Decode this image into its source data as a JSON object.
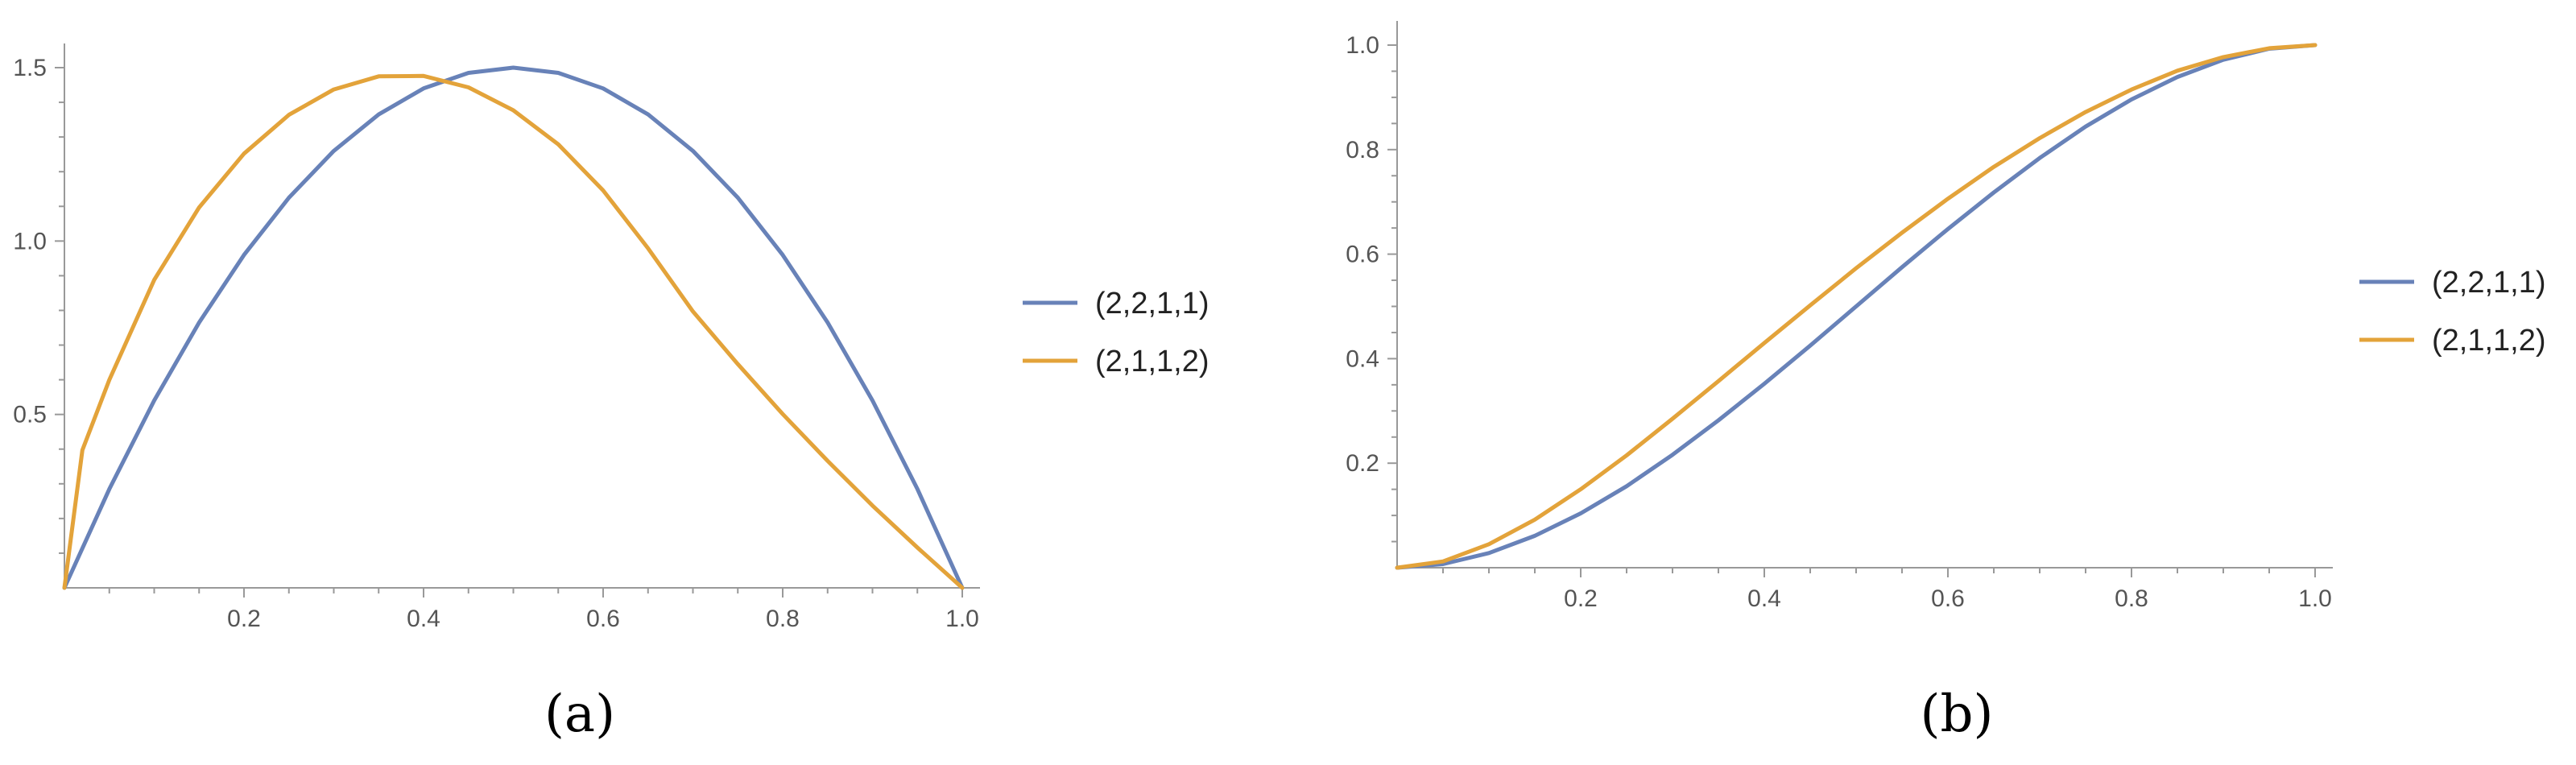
{
  "chart_data": [
    {
      "type": "line",
      "id": "a",
      "panel_label": "(a)",
      "title": "",
      "xlabel": "",
      "ylabel": "",
      "xlim": [
        0,
        1
      ],
      "ylim": [
        0,
        1.5
      ],
      "xticks": [
        {
          "value": 0.2,
          "label": "0.2"
        },
        {
          "value": 0.4,
          "label": "0.4"
        },
        {
          "value": 0.6,
          "label": "0.6"
        },
        {
          "value": 0.8,
          "label": "0.8"
        },
        {
          "value": 1.0,
          "label": "1.0"
        }
      ],
      "yticks": [
        {
          "value": 0.5,
          "label": "0.5"
        },
        {
          "value": 1.0,
          "label": "1.0"
        },
        {
          "value": 1.5,
          "label": "1.5"
        }
      ],
      "grid": false,
      "legend_position": "right",
      "series": [
        {
          "name": "(2,2,1,1)",
          "color": "#6882B8",
          "x": [
            0,
            0.05,
            0.1,
            0.15,
            0.2,
            0.25,
            0.3,
            0.35,
            0.4,
            0.45,
            0.5,
            0.55,
            0.6,
            0.65,
            0.7,
            0.75,
            0.8,
            0.85,
            0.9,
            0.95,
            1.0
          ],
          "y": [
            0,
            0.285,
            0.54,
            0.765,
            0.96,
            1.125,
            1.26,
            1.365,
            1.44,
            1.485,
            1.5,
            1.485,
            1.44,
            1.365,
            1.26,
            1.125,
            0.96,
            0.765,
            0.54,
            0.285,
            0
          ]
        },
        {
          "name": "(2,1,1,2)",
          "color": "#E3A33A",
          "x": [
            0,
            0.02,
            0.05,
            0.1,
            0.15,
            0.2,
            0.25,
            0.3,
            0.35,
            0.4,
            0.45,
            0.5,
            0.55,
            0.6,
            0.65,
            0.7,
            0.75,
            0.8,
            0.85,
            0.9,
            0.95,
            1.0
          ],
          "y": [
            0,
            0.397,
            0.6,
            0.888,
            1.097,
            1.252,
            1.364,
            1.437,
            1.475,
            1.476,
            1.443,
            1.377,
            1.279,
            1.146,
            0.979,
            0.797,
            0.645,
            0.501,
            0.366,
            0.237,
            0.116,
            0
          ]
        }
      ]
    },
    {
      "type": "line",
      "id": "b",
      "panel_label": "(b)",
      "title": "",
      "xlabel": "",
      "ylabel": "",
      "xlim": [
        0,
        1
      ],
      "ylim": [
        0,
        1.0
      ],
      "xticks": [
        {
          "value": 0.2,
          "label": "0.2"
        },
        {
          "value": 0.4,
          "label": "0.4"
        },
        {
          "value": 0.6,
          "label": "0.6"
        },
        {
          "value": 0.8,
          "label": "0.8"
        },
        {
          "value": 1.0,
          "label": "1.0"
        }
      ],
      "yticks": [
        {
          "value": 0.2,
          "label": "0.2"
        },
        {
          "value": 0.4,
          "label": "0.4"
        },
        {
          "value": 0.6,
          "label": "0.6"
        },
        {
          "value": 0.8,
          "label": "0.8"
        },
        {
          "value": 1.0,
          "label": "1.0"
        }
      ],
      "grid": false,
      "legend_position": "right",
      "series": [
        {
          "name": "(2,2,1,1)",
          "color": "#6882B8",
          "x": [
            0,
            0.05,
            0.1,
            0.15,
            0.2,
            0.25,
            0.3,
            0.35,
            0.4,
            0.45,
            0.5,
            0.55,
            0.6,
            0.65,
            0.7,
            0.75,
            0.8,
            0.85,
            0.9,
            0.95,
            1.0
          ],
          "y": [
            0,
            0.007,
            0.028,
            0.061,
            0.104,
            0.156,
            0.216,
            0.282,
            0.352,
            0.425,
            0.5,
            0.575,
            0.648,
            0.718,
            0.784,
            0.844,
            0.896,
            0.939,
            0.972,
            0.993,
            1.0
          ]
        },
        {
          "name": "(2,1,1,2)",
          "color": "#E3A33A",
          "x": [
            0,
            0.05,
            0.1,
            0.15,
            0.2,
            0.25,
            0.3,
            0.35,
            0.4,
            0.45,
            0.5,
            0.55,
            0.6,
            0.65,
            0.7,
            0.75,
            0.8,
            0.85,
            0.9,
            0.95,
            1.0
          ],
          "y": [
            0,
            0.012,
            0.045,
            0.092,
            0.15,
            0.215,
            0.285,
            0.357,
            0.43,
            0.502,
            0.573,
            0.641,
            0.706,
            0.767,
            0.822,
            0.872,
            0.915,
            0.951,
            0.977,
            0.994,
            1.0
          ]
        }
      ]
    }
  ]
}
